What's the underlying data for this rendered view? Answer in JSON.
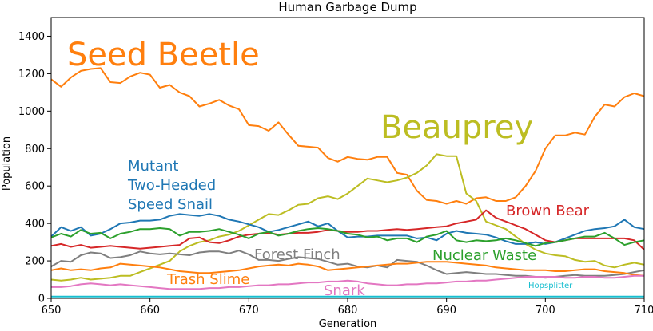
{
  "chart_data": {
    "type": "line",
    "title": "Human Garbage Dump",
    "xlabel": "Generation",
    "ylabel": "Population",
    "xlim": [
      650,
      710
    ],
    "ylim": [
      0,
      1500
    ],
    "xticks": [
      650,
      660,
      670,
      680,
      690,
      700,
      710
    ],
    "yticks": [
      0,
      200,
      400,
      600,
      800,
      1000,
      1200,
      1400
    ],
    "grid": false,
    "x": [
      650,
      651,
      652,
      653,
      654,
      655,
      656,
      657,
      658,
      659,
      660,
      661,
      662,
      663,
      664,
      665,
      666,
      667,
      668,
      669,
      670,
      671,
      672,
      673,
      674,
      675,
      676,
      677,
      678,
      679,
      680,
      681,
      682,
      683,
      684,
      685,
      686,
      687,
      688,
      689,
      690,
      691,
      692,
      693,
      694,
      695,
      696,
      697,
      698,
      699,
      700,
      701,
      702,
      703,
      704,
      705,
      706,
      707,
      708,
      709,
      710
    ],
    "series": [
      {
        "name": "Seed Beetle",
        "color": "#ff7f0e",
        "label_size": 40,
        "values": [
          1170,
          1130,
          1180,
          1215,
          1225,
          1230,
          1155,
          1150,
          1185,
          1205,
          1195,
          1125,
          1140,
          1100,
          1080,
          1025,
          1040,
          1060,
          1030,
          1010,
          925,
          920,
          895,
          940,
          875,
          815,
          810,
          805,
          750,
          730,
          755,
          745,
          740,
          755,
          755,
          670,
          660,
          575,
          525,
          520,
          505,
          520,
          505,
          535,
          540,
          520,
          520,
          540,
          600,
          680,
          800,
          870,
          870,
          885,
          875,
          970,
          1035,
          1025,
          1075,
          1095,
          1080
        ]
      },
      {
        "name": "Beauprey",
        "color": "#bcbd22",
        "label_size": 40,
        "values": [
          100,
          95,
          100,
          110,
          100,
          105,
          110,
          120,
          120,
          140,
          160,
          180,
          200,
          250,
          280,
          300,
          310,
          330,
          340,
          360,
          390,
          420,
          450,
          445,
          470,
          500,
          505,
          535,
          545,
          530,
          560,
          600,
          640,
          630,
          620,
          630,
          645,
          670,
          710,
          770,
          760,
          760,
          560,
          520,
          410,
          390,
          370,
          330,
          290,
          260,
          240,
          230,
          225,
          205,
          195,
          200,
          175,
          165,
          180,
          190,
          180
        ]
      },
      {
        "name": "Mutant\nTwo-Headed\nSpeed Snail",
        "color": "#1f77b4",
        "label_size": 18,
        "values": [
          330,
          380,
          360,
          380,
          335,
          345,
          370,
          400,
          405,
          415,
          415,
          420,
          440,
          450,
          445,
          440,
          450,
          440,
          420,
          410,
          395,
          380,
          355,
          365,
          380,
          395,
          410,
          385,
          400,
          360,
          325,
          330,
          330,
          335,
          335,
          335,
          335,
          320,
          325,
          310,
          345,
          360,
          350,
          345,
          340,
          325,
          305,
          290,
          290,
          300,
          290,
          300,
          320,
          340,
          360,
          370,
          375,
          385,
          420,
          380,
          370
        ]
      },
      {
        "name": "Brown Bear",
        "color": "#d62728",
        "label_size": 18,
        "values": [
          280,
          290,
          275,
          285,
          270,
          275,
          280,
          275,
          270,
          265,
          270,
          275,
          280,
          285,
          320,
          325,
          300,
          295,
          310,
          330,
          340,
          345,
          350,
          340,
          345,
          350,
          350,
          355,
          365,
          360,
          355,
          355,
          360,
          360,
          365,
          370,
          365,
          370,
          375,
          380,
          385,
          400,
          410,
          420,
          470,
          430,
          410,
          390,
          370,
          340,
          310,
          300,
          310,
          320,
          320,
          320,
          320,
          320,
          320,
          310,
          260
        ]
      },
      {
        "name": "Nuclear Waste",
        "color": "#2ca02c",
        "label_size": 18,
        "values": [
          325,
          345,
          330,
          365,
          345,
          350,
          320,
          345,
          355,
          370,
          370,
          375,
          370,
          335,
          355,
          355,
          360,
          370,
          355,
          340,
          320,
          345,
          355,
          335,
          345,
          360,
          370,
          375,
          370,
          360,
          345,
          340,
          325,
          330,
          310,
          320,
          320,
          300,
          330,
          340,
          360,
          310,
          300,
          310,
          305,
          310,
          320,
          310,
          295,
          280,
          295,
          300,
          310,
          320,
          330,
          330,
          350,
          320,
          285,
          300,
          310
        ]
      },
      {
        "name": "Forest Finch",
        "color": "#7f7f7f",
        "label_size": 18,
        "values": [
          170,
          200,
          195,
          230,
          245,
          240,
          215,
          220,
          230,
          250,
          240,
          235,
          240,
          235,
          230,
          245,
          250,
          250,
          240,
          255,
          235,
          205,
          205,
          200,
          210,
          220,
          215,
          210,
          195,
          180,
          185,
          170,
          165,
          175,
          165,
          205,
          200,
          195,
          175,
          150,
          130,
          135,
          140,
          135,
          130,
          130,
          125,
          120,
          120,
          115,
          110,
          115,
          120,
          125,
          120,
          120,
          120,
          125,
          130,
          140,
          150
        ]
      },
      {
        "name": "Trash Slime",
        "color": "#ff7f0e",
        "label_size": 18,
        "values": [
          150,
          160,
          150,
          155,
          150,
          160,
          165,
          185,
          180,
          175,
          170,
          165,
          155,
          145,
          140,
          135,
          135,
          140,
          145,
          150,
          160,
          170,
          175,
          180,
          175,
          185,
          180,
          170,
          150,
          155,
          160,
          165,
          170,
          175,
          180,
          185,
          185,
          190,
          195,
          195,
          195,
          190,
          185,
          180,
          175,
          165,
          160,
          155,
          150,
          150,
          150,
          145,
          145,
          150,
          155,
          155,
          145,
          140,
          135,
          125,
          120
        ]
      },
      {
        "name": "Snark",
        "color": "#e377c2",
        "label_size": 18,
        "values": [
          60,
          60,
          65,
          75,
          80,
          75,
          70,
          75,
          70,
          65,
          60,
          55,
          50,
          50,
          50,
          50,
          55,
          55,
          60,
          60,
          65,
          70,
          70,
          75,
          75,
          80,
          85,
          85,
          90,
          90,
          95,
          90,
          80,
          75,
          70,
          70,
          75,
          75,
          80,
          80,
          85,
          90,
          90,
          95,
          95,
          100,
          105,
          110,
          115,
          115,
          115,
          115,
          110,
          110,
          115,
          115,
          110,
          110,
          115,
          120,
          120
        ]
      },
      {
        "name": "Hopsplitter",
        "color": "#17becf",
        "label_size": 10,
        "values": [
          10,
          10,
          10,
          10,
          10,
          10,
          10,
          10,
          10,
          10,
          10,
          10,
          10,
          10,
          10,
          10,
          10,
          10,
          10,
          10,
          10,
          10,
          10,
          10,
          10,
          10,
          10,
          10,
          10,
          10,
          10,
          10,
          10,
          10,
          10,
          10,
          10,
          10,
          10,
          10,
          10,
          10,
          10,
          10,
          10,
          10,
          10,
          10,
          10,
          10,
          10,
          10,
          10,
          10,
          10,
          10,
          10,
          10,
          10,
          10,
          10
        ]
      }
    ]
  }
}
